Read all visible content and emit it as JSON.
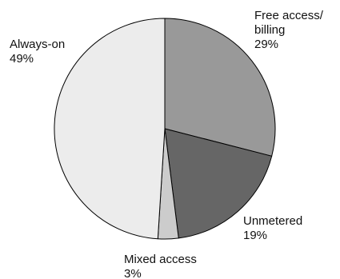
{
  "chart_data": {
    "type": "pie",
    "slices": [
      {
        "label_lines": [
          "Free access/",
          "billing"
        ],
        "value": 29,
        "value_label": "29%",
        "color": "#999999"
      },
      {
        "label_lines": [
          "Unmetered"
        ],
        "value": 19,
        "value_label": "19%",
        "color": "#666666"
      },
      {
        "label_lines": [
          "Mixed access"
        ],
        "value": 3,
        "value_label": "3%",
        "color": "#cccccc"
      },
      {
        "label_lines": [
          "Always-on"
        ],
        "value": 49,
        "value_label": "49%",
        "color": "#ececec"
      }
    ],
    "stroke_color": "#000000"
  }
}
